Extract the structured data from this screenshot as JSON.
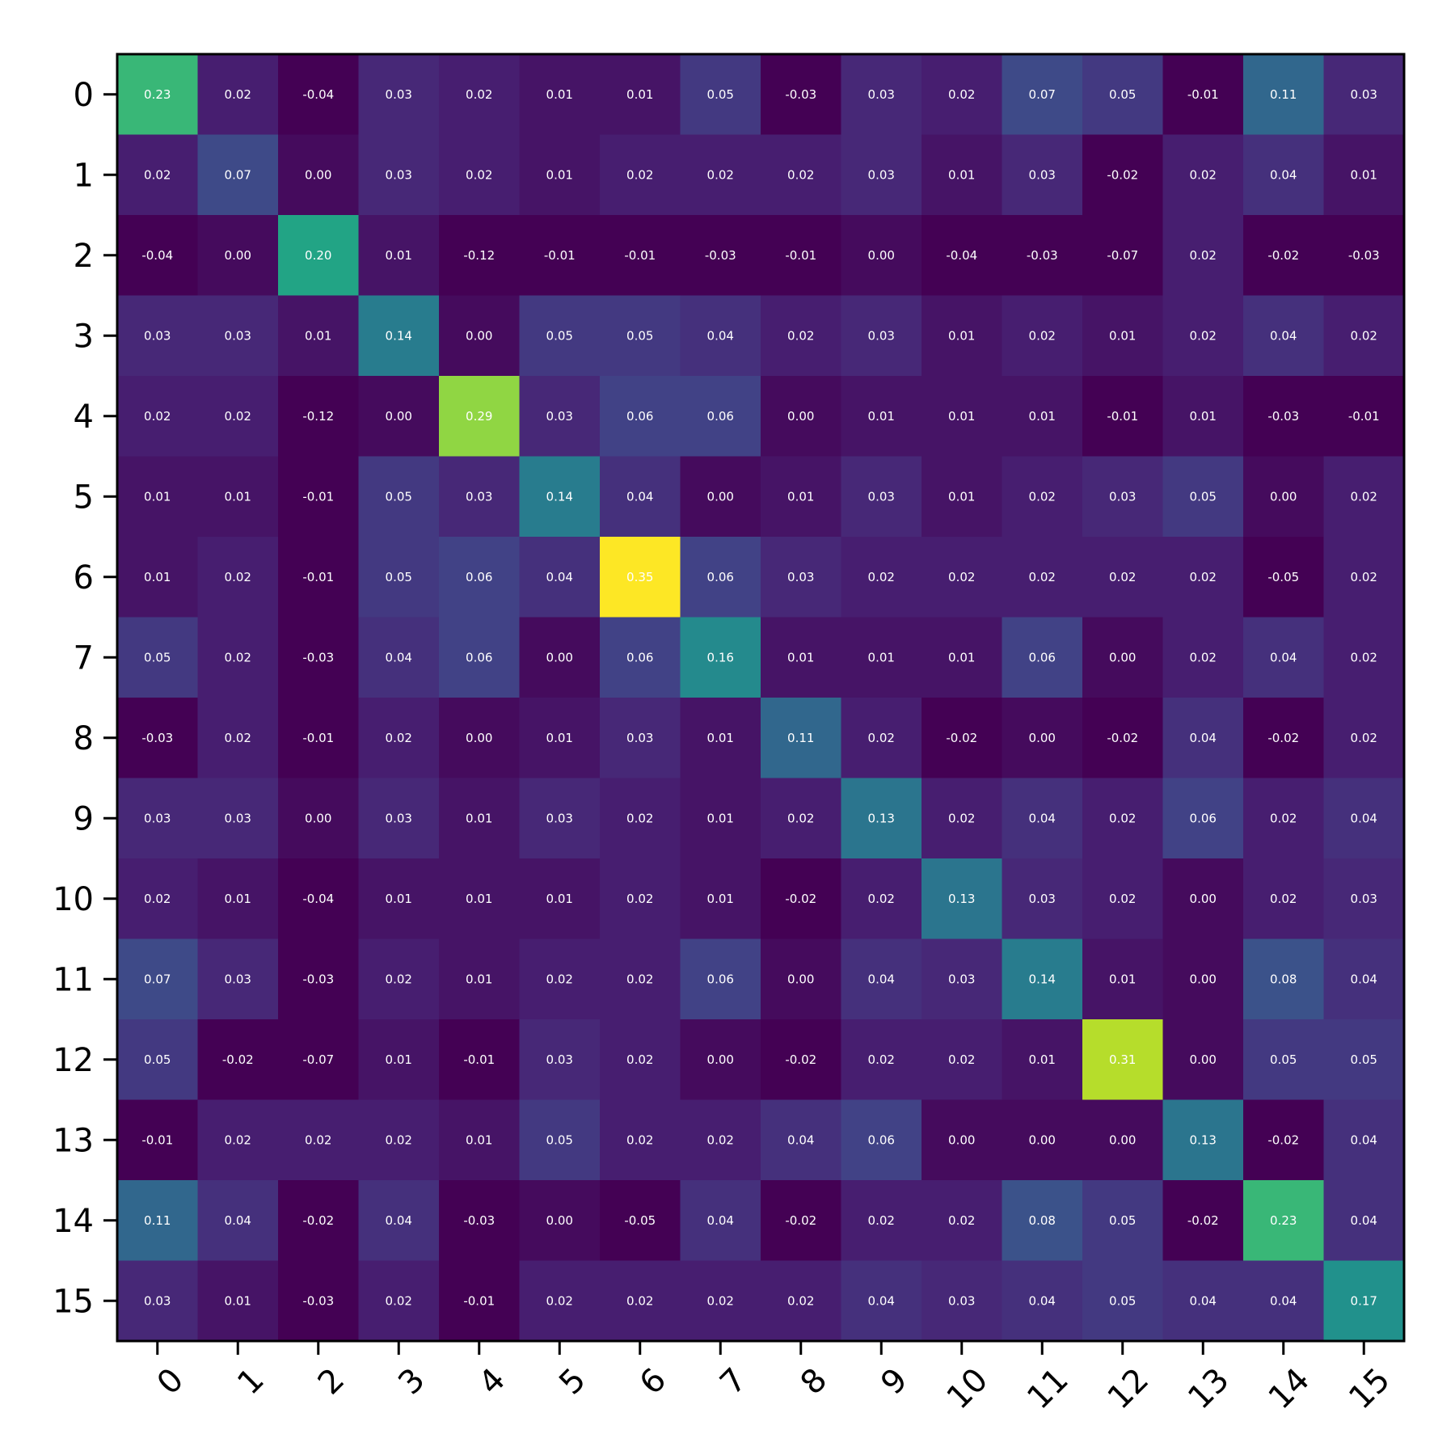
{
  "chart_data": {
    "type": "heatmap",
    "title": "",
    "xlabel": "",
    "ylabel": "",
    "x_categories": [
      "0",
      "1",
      "2",
      "3",
      "4",
      "5",
      "6",
      "7",
      "8",
      "9",
      "10",
      "11",
      "12",
      "13",
      "14",
      "15"
    ],
    "y_categories": [
      "0",
      "1",
      "2",
      "3",
      "4",
      "5",
      "6",
      "7",
      "8",
      "9",
      "10",
      "11",
      "12",
      "13",
      "14",
      "15"
    ],
    "colormap": "viridis",
    "vmin": -0.01,
    "vmax": 0.35,
    "x_tick_rotation_deg": 45,
    "grid": false,
    "values": [
      [
        0.23,
        0.02,
        -0.04,
        0.03,
        0.02,
        0.01,
        0.01,
        0.05,
        -0.03,
        0.03,
        0.02,
        0.07,
        0.05,
        -0.01,
        0.11,
        0.03
      ],
      [
        0.02,
        0.07,
        -0.0,
        0.03,
        0.02,
        0.01,
        0.02,
        0.02,
        0.02,
        0.03,
        0.01,
        0.03,
        -0.02,
        0.02,
        0.04,
        0.01
      ],
      [
        -0.04,
        -0.0,
        0.2,
        0.01,
        -0.12,
        -0.01,
        -0.01,
        -0.03,
        -0.01,
        -0.0,
        -0.04,
        -0.03,
        -0.07,
        0.02,
        -0.02,
        -0.03
      ],
      [
        0.03,
        0.03,
        0.01,
        0.14,
        -0.0,
        0.05,
        0.05,
        0.04,
        0.02,
        0.03,
        0.01,
        0.02,
        0.01,
        0.02,
        0.04,
        0.02
      ],
      [
        0.02,
        0.02,
        -0.12,
        -0.0,
        0.29,
        0.03,
        0.06,
        0.06,
        0.0,
        0.01,
        0.01,
        0.01,
        -0.01,
        0.01,
        -0.03,
        -0.01
      ],
      [
        0.01,
        0.01,
        -0.01,
        0.05,
        0.03,
        0.14,
        0.04,
        0.0,
        0.01,
        0.03,
        0.01,
        0.02,
        0.03,
        0.05,
        -0.0,
        0.02
      ],
      [
        0.01,
        0.02,
        -0.01,
        0.05,
        0.06,
        0.04,
        0.35,
        0.06,
        0.03,
        0.02,
        0.02,
        0.02,
        0.02,
        0.02,
        -0.05,
        0.02
      ],
      [
        0.05,
        0.02,
        -0.03,
        0.04,
        0.06,
        0.0,
        0.06,
        0.16,
        0.01,
        0.01,
        0.01,
        0.06,
        -0.0,
        0.02,
        0.04,
        0.02
      ],
      [
        -0.03,
        0.02,
        -0.01,
        0.02,
        0.0,
        0.01,
        0.03,
        0.01,
        0.11,
        0.02,
        -0.02,
        -0.0,
        -0.02,
        0.04,
        -0.02,
        0.02
      ],
      [
        0.03,
        0.03,
        -0.0,
        0.03,
        0.01,
        0.03,
        0.02,
        0.01,
        0.02,
        0.13,
        0.02,
        0.04,
        0.02,
        0.06,
        0.02,
        0.04
      ],
      [
        0.02,
        0.01,
        -0.04,
        0.01,
        0.01,
        0.01,
        0.02,
        0.01,
        -0.02,
        0.02,
        0.13,
        0.03,
        0.02,
        0.0,
        0.02,
        0.03
      ],
      [
        0.07,
        0.03,
        -0.03,
        0.02,
        0.01,
        0.02,
        0.02,
        0.06,
        -0.0,
        0.04,
        0.03,
        0.14,
        0.01,
        0.0,
        0.08,
        0.04
      ],
      [
        0.05,
        -0.02,
        -0.07,
        0.01,
        -0.01,
        0.03,
        0.02,
        -0.0,
        -0.02,
        0.02,
        0.02,
        0.01,
        0.31,
        0.0,
        0.05,
        0.05
      ],
      [
        -0.01,
        0.02,
        0.02,
        0.02,
        0.01,
        0.05,
        0.02,
        0.02,
        0.04,
        0.06,
        0.0,
        0.0,
        0.0,
        0.13,
        -0.02,
        0.04
      ],
      [
        0.11,
        0.04,
        -0.02,
        0.04,
        -0.03,
        -0.0,
        -0.05,
        0.04,
        -0.02,
        0.02,
        0.02,
        0.08,
        0.05,
        -0.02,
        0.23,
        0.04
      ],
      [
        0.03,
        0.01,
        -0.03,
        0.02,
        -0.01,
        0.02,
        0.02,
        0.02,
        0.02,
        0.04,
        0.03,
        0.04,
        0.05,
        0.04,
        0.04,
        0.17
      ]
    ]
  }
}
